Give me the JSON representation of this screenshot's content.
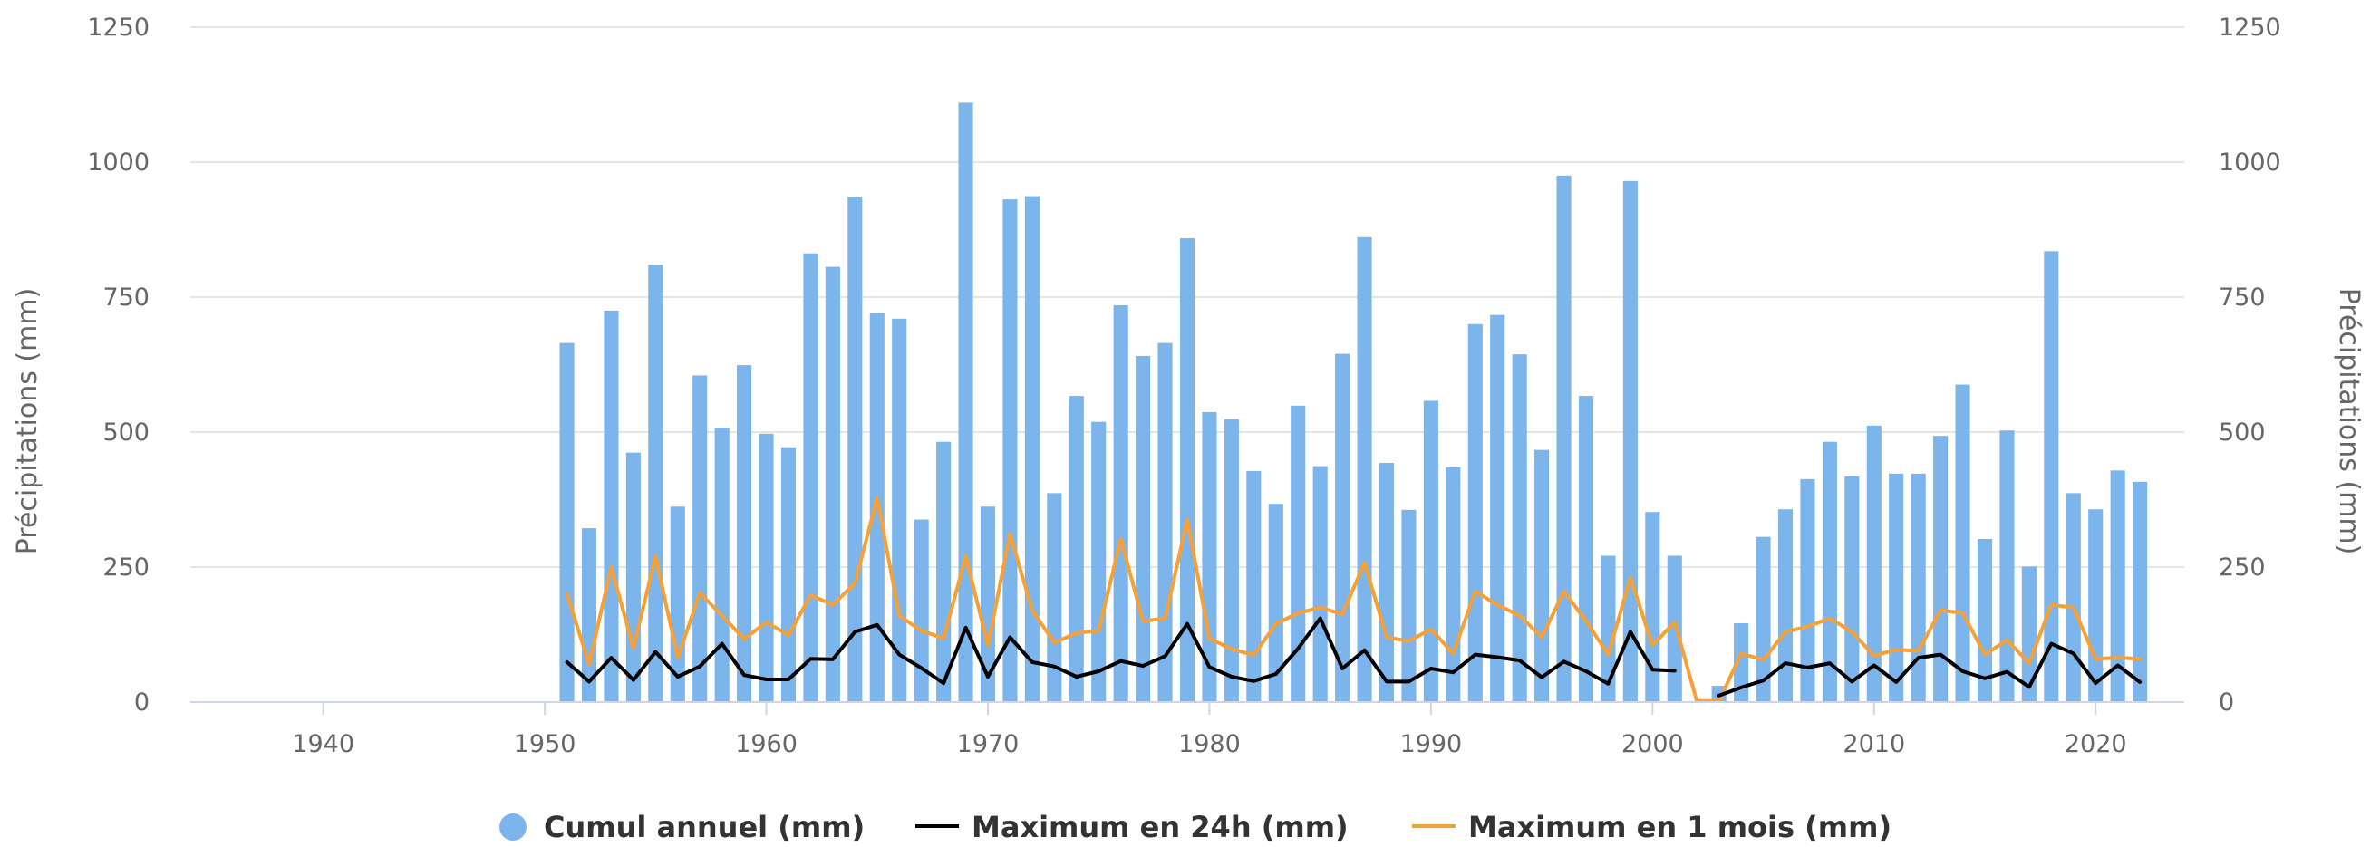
{
  "chart_data": {
    "type": "bar",
    "ylabel_left": "Précipitations (mm)",
    "ylabel_right": "Précipitations (mm)",
    "xlim": [
      1934,
      2024
    ],
    "ylim": [
      0,
      1250
    ],
    "x_ticks": [
      "1940",
      "1950",
      "1960",
      "1970",
      "1980",
      "1990",
      "2000",
      "2010",
      "2020"
    ],
    "y_ticks": [
      "0",
      "250",
      "500",
      "750",
      "1000",
      "1250"
    ],
    "grid": true,
    "legend_position": "bottom",
    "legend": [
      {
        "label": "Cumul annuel (mm)",
        "marker": "circle",
        "color": "#7cb5ec"
      },
      {
        "label": "Maximum en 24h (mm)",
        "marker": "line",
        "color": "#000000"
      },
      {
        "label": "Maximum en 1 mois (mm)",
        "marker": "line",
        "color": "#f7a035"
      }
    ],
    "series": [
      {
        "name": "Cumul annuel (mm)",
        "type": "bar",
        "color": "#7cb5ec",
        "points": [
          [
            1951,
            665
          ],
          [
            1952,
            322
          ],
          [
            1953,
            725
          ],
          [
            1954,
            462
          ],
          [
            1955,
            810
          ],
          [
            1956,
            362
          ],
          [
            1957,
            605
          ],
          [
            1958,
            508
          ],
          [
            1959,
            624
          ],
          [
            1960,
            497
          ],
          [
            1961,
            472
          ],
          [
            1962,
            831
          ],
          [
            1963,
            806
          ],
          [
            1964,
            936
          ],
          [
            1965,
            721
          ],
          [
            1966,
            710
          ],
          [
            1967,
            338
          ],
          [
            1968,
            482
          ],
          [
            1969,
            1110
          ],
          [
            1970,
            362
          ],
          [
            1971,
            931
          ],
          [
            1972,
            937
          ],
          [
            1973,
            387
          ],
          [
            1974,
            567
          ],
          [
            1975,
            519
          ],
          [
            1976,
            735
          ],
          [
            1977,
            641
          ],
          [
            1978,
            665
          ],
          [
            1979,
            859
          ],
          [
            1980,
            537
          ],
          [
            1981,
            524
          ],
          [
            1982,
            428
          ],
          [
            1983,
            367
          ],
          [
            1984,
            549
          ],
          [
            1985,
            437
          ],
          [
            1986,
            645
          ],
          [
            1987,
            861
          ],
          [
            1988,
            443
          ],
          [
            1989,
            356
          ],
          [
            1990,
            558
          ],
          [
            1991,
            435
          ],
          [
            1992,
            700
          ],
          [
            1993,
            717
          ],
          [
            1994,
            644
          ],
          [
            1995,
            467
          ],
          [
            1996,
            975
          ],
          [
            1997,
            567
          ],
          [
            1998,
            271
          ],
          [
            1999,
            965
          ],
          [
            2000,
            352
          ],
          [
            2001,
            271
          ],
          [
            2002,
            0
          ],
          [
            2003,
            30
          ],
          [
            2004,
            146
          ],
          [
            2005,
            306
          ],
          [
            2006,
            357
          ],
          [
            2007,
            413
          ],
          [
            2008,
            482
          ],
          [
            2009,
            418
          ],
          [
            2010,
            512
          ],
          [
            2011,
            423
          ],
          [
            2012,
            423
          ],
          [
            2013,
            493
          ],
          [
            2014,
            588
          ],
          [
            2015,
            302
          ],
          [
            2016,
            503
          ],
          [
            2017,
            251
          ],
          [
            2018,
            835
          ],
          [
            2019,
            387
          ],
          [
            2020,
            357
          ],
          [
            2021,
            429
          ],
          [
            2022,
            408
          ]
        ]
      },
      {
        "name": "Maximum en 24h (mm)",
        "type": "line",
        "color": "#000000",
        "segments": [
          [
            [
              1951,
              74
            ],
            [
              1952,
              38
            ],
            [
              1953,
              82
            ],
            [
              1954,
              41
            ],
            [
              1955,
              93
            ],
            [
              1956,
              47
            ],
            [
              1957,
              66
            ],
            [
              1958,
              108
            ],
            [
              1959,
              50
            ],
            [
              1960,
              42
            ],
            [
              1961,
              42
            ],
            [
              1962,
              80
            ],
            [
              1963,
              79
            ],
            [
              1964,
              130
            ],
            [
              1965,
              143
            ],
            [
              1966,
              88
            ],
            [
              1967,
              63
            ],
            [
              1968,
              35
            ],
            [
              1969,
              138
            ],
            [
              1970,
              47
            ],
            [
              1971,
              120
            ],
            [
              1972,
              74
            ],
            [
              1973,
              66
            ],
            [
              1974,
              47
            ],
            [
              1975,
              57
            ],
            [
              1976,
              76
            ],
            [
              1977,
              67
            ],
            [
              1978,
              85
            ],
            [
              1979,
              145
            ],
            [
              1980,
              65
            ],
            [
              1981,
              47
            ],
            [
              1982,
              39
            ],
            [
              1983,
              52
            ],
            [
              1984,
              99
            ],
            [
              1985,
              155
            ],
            [
              1986,
              62
            ],
            [
              1987,
              96
            ],
            [
              1988,
              38
            ],
            [
              1989,
              38
            ],
            [
              1990,
              62
            ],
            [
              1991,
              55
            ],
            [
              1992,
              88
            ],
            [
              1993,
              83
            ],
            [
              1994,
              77
            ],
            [
              1995,
              46
            ],
            [
              1996,
              75
            ],
            [
              1997,
              57
            ],
            [
              1998,
              34
            ],
            [
              1999,
              130
            ],
            [
              2000,
              60
            ],
            [
              2001,
              58
            ]
          ],
          [
            [
              2003,
              12
            ],
            [
              2004,
              27
            ],
            [
              2005,
              40
            ],
            [
              2006,
              72
            ],
            [
              2007,
              64
            ],
            [
              2008,
              72
            ],
            [
              2009,
              38
            ],
            [
              2010,
              68
            ],
            [
              2011,
              37
            ],
            [
              2012,
              82
            ],
            [
              2013,
              88
            ],
            [
              2014,
              57
            ],
            [
              2015,
              44
            ],
            [
              2016,
              56
            ],
            [
              2017,
              28
            ],
            [
              2018,
              108
            ],
            [
              2019,
              90
            ],
            [
              2020,
              35
            ],
            [
              2021,
              68
            ],
            [
              2022,
              37
            ]
          ]
        ]
      },
      {
        "name": "Maximum en 1 mois (mm)",
        "type": "line",
        "color": "#f7a035",
        "segments": [
          [
            [
              1951,
              200
            ],
            [
              1952,
              70
            ],
            [
              1953,
              250
            ],
            [
              1954,
              100
            ],
            [
              1955,
              270
            ],
            [
              1956,
              82
            ],
            [
              1957,
              202
            ],
            [
              1958,
              160
            ],
            [
              1959,
              117
            ],
            [
              1960,
              148
            ],
            [
              1961,
              124
            ],
            [
              1962,
              198
            ],
            [
              1963,
              180
            ],
            [
              1964,
              220
            ],
            [
              1965,
              378
            ],
            [
              1966,
              160
            ],
            [
              1967,
              132
            ],
            [
              1968,
              118
            ],
            [
              1969,
              270
            ],
            [
              1970,
              105
            ],
            [
              1971,
              311
            ],
            [
              1972,
              170
            ],
            [
              1973,
              110
            ],
            [
              1974,
              128
            ],
            [
              1975,
              132
            ],
            [
              1976,
              302
            ],
            [
              1977,
              150
            ],
            [
              1978,
              155
            ],
            [
              1979,
              338
            ],
            [
              1980,
              118
            ],
            [
              1981,
              98
            ],
            [
              1982,
              87
            ],
            [
              1983,
              145
            ],
            [
              1984,
              165
            ],
            [
              1985,
              175
            ],
            [
              1986,
              163
            ],
            [
              1987,
              258
            ],
            [
              1988,
              120
            ],
            [
              1989,
              113
            ],
            [
              1990,
              135
            ],
            [
              1991,
              90
            ],
            [
              1992,
              205
            ],
            [
              1993,
              180
            ],
            [
              1994,
              160
            ],
            [
              1995,
              120
            ],
            [
              1996,
              205
            ],
            [
              1997,
              150
            ],
            [
              1998,
              88
            ],
            [
              1999,
              230
            ],
            [
              2000,
              105
            ],
            [
              2001,
              148
            ],
            [
              2002,
              2
            ],
            [
              2003,
              2
            ],
            [
              2004,
              90
            ],
            [
              2005,
              78
            ],
            [
              2006,
              130
            ],
            [
              2007,
              140
            ],
            [
              2008,
              155
            ],
            [
              2009,
              130
            ],
            [
              2010,
              86
            ],
            [
              2011,
              97
            ],
            [
              2012,
              95
            ],
            [
              2013,
              170
            ],
            [
              2014,
              165
            ],
            [
              2015,
              88
            ],
            [
              2016,
              115
            ],
            [
              2017,
              72
            ],
            [
              2018,
              180
            ],
            [
              2019,
              175
            ],
            [
              2020,
              80
            ],
            [
              2021,
              82
            ],
            [
              2022,
              80
            ]
          ]
        ]
      }
    ]
  }
}
